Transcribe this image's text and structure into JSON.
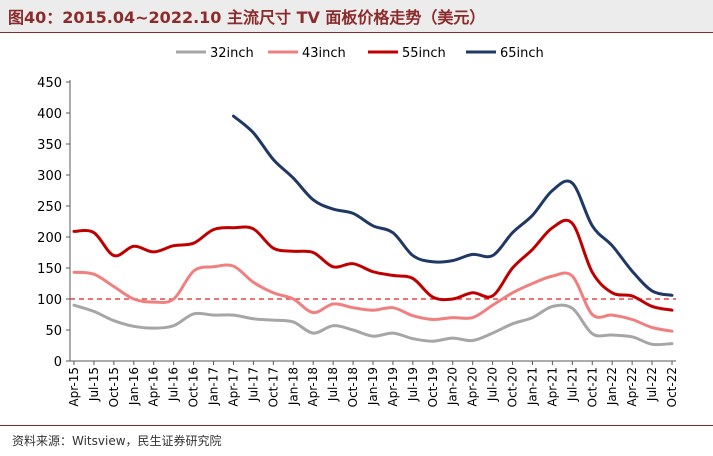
{
  "title": "图40：2015.04~2022.10 主流尺寸 TV 面板价格走势（美元）",
  "source": "资料来源：Witsview，民生证券研究院",
  "chart_data": {
    "type": "line",
    "categories": [
      "Apr-15",
      "Jul-15",
      "Oct-15",
      "Jan-16",
      "Apr-16",
      "Jul-16",
      "Oct-16",
      "Jan-17",
      "Apr-17",
      "Jul-17",
      "Oct-17",
      "Jan-18",
      "Apr-18",
      "Jul-18",
      "Oct-18",
      "Jan-19",
      "Apr-19",
      "Jul-19",
      "Oct-19",
      "Jan-20",
      "Apr-20",
      "Jul-20",
      "Oct-20",
      "Jan-21",
      "Apr-21",
      "Jul-21",
      "Oct-21",
      "Jan-22",
      "Apr-22",
      "Jul-22",
      "Oct-22"
    ],
    "ylim": [
      0,
      450
    ],
    "yticks": [
      0,
      50,
      100,
      150,
      200,
      250,
      300,
      350,
      400,
      450
    ],
    "reference_line": 100,
    "series": [
      {
        "name": "32inch",
        "color": "#a6a6a6",
        "values": [
          90,
          80,
          65,
          56,
          53,
          57,
          76,
          74,
          74,
          68,
          66,
          63,
          45,
          57,
          50,
          40,
          45,
          36,
          32,
          37,
          33,
          45,
          60,
          70,
          88,
          85,
          44,
          42,
          39,
          27,
          28
        ]
      },
      {
        "name": "43inch",
        "color": "#f08080",
        "values": [
          143,
          140,
          120,
          100,
          95,
          100,
          145,
          152,
          153,
          127,
          110,
          100,
          78,
          92,
          86,
          82,
          86,
          73,
          67,
          70,
          70,
          90,
          110,
          125,
          137,
          137,
          75,
          74,
          67,
          54,
          48
        ]
      },
      {
        "name": "55inch",
        "color": "#c00000",
        "values": [
          209,
          207,
          170,
          185,
          176,
          186,
          190,
          212,
          215,
          213,
          182,
          177,
          175,
          152,
          157,
          144,
          138,
          133,
          103,
          100,
          110,
          105,
          150,
          180,
          215,
          222,
          143,
          110,
          105,
          88,
          82
        ]
      },
      {
        "name": "65inch",
        "color": "#1f3864",
        "values": [
          null,
          null,
          null,
          null,
          null,
          null,
          null,
          null,
          395,
          368,
          325,
          295,
          260,
          245,
          238,
          218,
          207,
          170,
          160,
          162,
          172,
          170,
          207,
          235,
          275,
          287,
          218,
          186,
          145,
          113,
          106
        ]
      }
    ]
  }
}
